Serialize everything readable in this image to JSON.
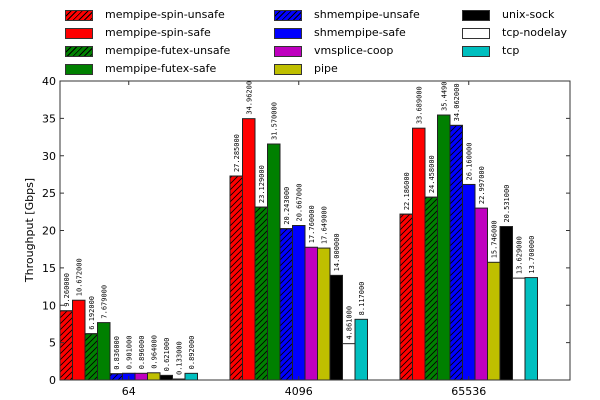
{
  "chart_data": {
    "type": "bar",
    "title": "",
    "xlabel": "",
    "ylabel": "Throughput [Gbps]",
    "ylim": [
      0,
      40
    ],
    "yticks": [
      0,
      5,
      10,
      15,
      20,
      25,
      30,
      35,
      40
    ],
    "grid": false,
    "legend_position": "top",
    "categories": [
      "64",
      "4096",
      "65536"
    ],
    "series": [
      {
        "name": "mempipe-spin-unsafe",
        "color": "#ff0000",
        "hatch": true,
        "values": [
          9.26,
          27.285,
          22.186
        ],
        "labels": [
          "9.260000",
          "27.285000",
          "22.186000"
        ]
      },
      {
        "name": "mempipe-spin-safe",
        "color": "#ff0000",
        "hatch": false,
        "values": [
          10.672,
          34.962,
          33.689
        ],
        "labels": [
          "10.672000",
          "34.96200",
          "33.689000"
        ]
      },
      {
        "name": "mempipe-futex-unsafe",
        "color": "#008000",
        "hatch": true,
        "values": [
          6.192,
          23.129,
          24.458
        ],
        "labels": [
          "6.192000",
          "23.129000",
          "24.458000"
        ]
      },
      {
        "name": "mempipe-futex-safe",
        "color": "#008000",
        "hatch": false,
        "values": [
          7.679,
          31.57,
          35.449
        ],
        "labels": [
          "7.679000",
          "31.570000",
          "35.4490"
        ]
      },
      {
        "name": "shmempipe-unsafe",
        "color": "#0000ff",
        "hatch": true,
        "values": [
          0.836,
          20.243,
          34.062
        ],
        "labels": [
          "0.836000",
          "20.243000",
          "34.062000"
        ]
      },
      {
        "name": "shmempipe-safe",
        "color": "#0000ff",
        "hatch": false,
        "values": [
          0.901,
          20.667,
          26.16
        ],
        "labels": [
          "0.901000",
          "20.667000",
          "26.160000"
        ]
      },
      {
        "name": "vmsplice-coop",
        "color": "#bf00bf",
        "hatch": false,
        "values": [
          0.896,
          17.76,
          22.997
        ],
        "labels": [
          "0.896000",
          "17.760000",
          "22.997000"
        ]
      },
      {
        "name": "pipe",
        "color": "#bfbf00",
        "hatch": false,
        "values": [
          0.964,
          17.649,
          15.746
        ],
        "labels": [
          "0.964000",
          "17.649000",
          "15.746000"
        ]
      },
      {
        "name": "unix-sock",
        "color": "#000000",
        "hatch": false,
        "values": [
          0.621,
          14.0,
          20.531
        ],
        "labels": [
          "0.621000",
          "14.000000",
          "20.531000"
        ]
      },
      {
        "name": "tcp-nodelay",
        "color": "#ffffff",
        "hatch": false,
        "values": [
          0.133,
          4.861,
          13.629
        ],
        "labels": [
          "0.133000",
          "4.861000",
          "13.629000"
        ]
      },
      {
        "name": "tcp",
        "color": "#00bfbf",
        "hatch": false,
        "values": [
          0.892,
          8.117,
          13.7
        ],
        "labels": [
          "0.892000",
          "8.117000",
          "13.700000"
        ]
      }
    ]
  }
}
